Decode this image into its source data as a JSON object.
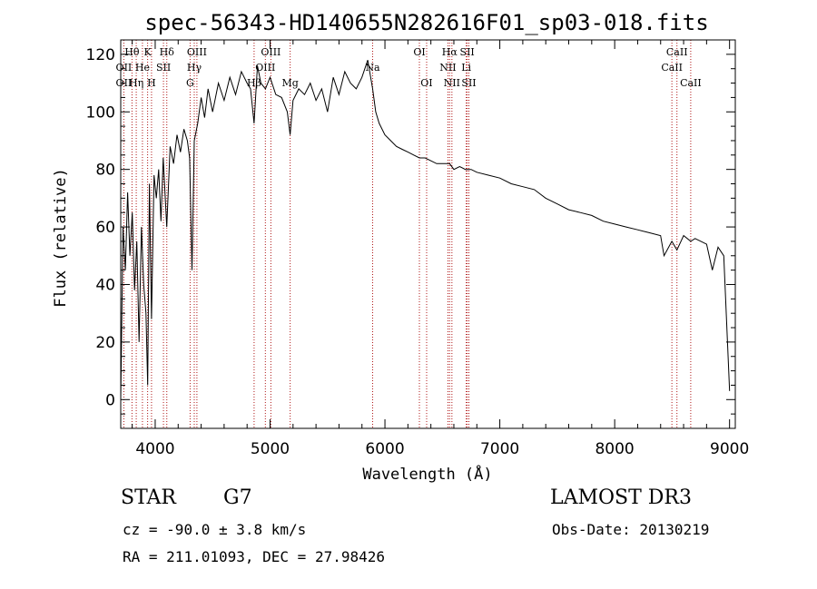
{
  "chart_data": {
    "type": "line",
    "title": "spec-56343-HD140655N282616F01_sp03-018.fits",
    "xlabel": "Wavelength (Å)",
    "ylabel": "Flux (relative)",
    "xlim": [
      3700,
      9050
    ],
    "ylim": [
      -10,
      125
    ],
    "xticks": [
      4000,
      5000,
      6000,
      7000,
      8000,
      9000
    ],
    "yticks": [
      0,
      20,
      40,
      60,
      80,
      100,
      120
    ],
    "series": [
      {
        "name": "flux",
        "x": [
          3700,
          3720,
          3740,
          3760,
          3780,
          3800,
          3820,
          3840,
          3860,
          3880,
          3900,
          3920,
          3935,
          3950,
          3968,
          3990,
          4010,
          4030,
          4050,
          4070,
          4101,
          4130,
          4160,
          4190,
          4220,
          4250,
          4280,
          4300,
          4320,
          4340,
          4370,
          4400,
          4430,
          4460,
          4500,
          4550,
          4600,
          4650,
          4700,
          4750,
          4800,
          4830,
          4861,
          4890,
          4920,
          4960,
          5000,
          5050,
          5100,
          5150,
          5175,
          5200,
          5250,
          5300,
          5350,
          5400,
          5450,
          5500,
          5550,
          5600,
          5650,
          5700,
          5750,
          5800,
          5850,
          5893,
          5920,
          5950,
          6000,
          6050,
          6100,
          6150,
          6200,
          6250,
          6300,
          6350,
          6400,
          6450,
          6500,
          6563,
          6600,
          6650,
          6700,
          6750,
          6800,
          6900,
          7000,
          7100,
          7200,
          7300,
          7400,
          7500,
          7600,
          7700,
          7800,
          7900,
          8000,
          8100,
          8200,
          8300,
          8400,
          8430,
          8498,
          8542,
          8600,
          8662,
          8700,
          8800,
          8850,
          8900,
          8950,
          9000
        ],
        "y": [
          0,
          60,
          45,
          72,
          50,
          65,
          38,
          55,
          20,
          60,
          40,
          30,
          5,
          75,
          28,
          78,
          70,
          80,
          62,
          84,
          60,
          88,
          82,
          92,
          86,
          94,
          90,
          84,
          45,
          90,
          96,
          105,
          98,
          108,
          100,
          110,
          104,
          112,
          106,
          114,
          110,
          108,
          96,
          116,
          110,
          108,
          112,
          106,
          105,
          100,
          92,
          104,
          108,
          106,
          110,
          104,
          108,
          100,
          112,
          106,
          114,
          110,
          108,
          112,
          118,
          108,
          100,
          96,
          92,
          90,
          88,
          87,
          86,
          85,
          84,
          84,
          83,
          82,
          82,
          82,
          80,
          81,
          80,
          80,
          79,
          78,
          77,
          75,
          74,
          73,
          70,
          68,
          66,
          65,
          64,
          62,
          61,
          60,
          59,
          58,
          57,
          50,
          55,
          52,
          57,
          55,
          56,
          54,
          45,
          53,
          50,
          3
        ]
      }
    ],
    "line_markers": [
      {
        "label": "Hθ",
        "x": 3798,
        "row": 0
      },
      {
        "label": "OII",
        "x": 3727,
        "row": 1
      },
      {
        "label": "OII",
        "x": 3727,
        "row": 2
      },
      {
        "label": "He",
        "x": 3889,
        "row": 1
      },
      {
        "label": "Hη",
        "x": 3835,
        "row": 2
      },
      {
        "label": "K",
        "x": 3934,
        "row": 0
      },
      {
        "label": "H",
        "x": 3968,
        "row": 2
      },
      {
        "label": "Hδ",
        "x": 4101,
        "row": 0
      },
      {
        "label": "SII",
        "x": 4072,
        "row": 1
      },
      {
        "label": "OIII",
        "x": 4363,
        "row": 0
      },
      {
        "label": "Hγ",
        "x": 4340,
        "row": 1
      },
      {
        "label": "G",
        "x": 4304,
        "row": 2
      },
      {
        "label": "OIII",
        "x": 5007,
        "row": 0
      },
      {
        "label": "OIII",
        "x": 4959,
        "row": 1
      },
      {
        "label": "Hβ",
        "x": 4861,
        "row": 2
      },
      {
        "label": "Mg",
        "x": 5175,
        "row": 2
      },
      {
        "label": "Na",
        "x": 5893,
        "row": 1
      },
      {
        "label": "OI",
        "x": 6300,
        "row": 0
      },
      {
        "label": "OI",
        "x": 6363,
        "row": 2
      },
      {
        "label": "Hα",
        "x": 6563,
        "row": 0
      },
      {
        "label": "NII",
        "x": 6548,
        "row": 1
      },
      {
        "label": "NII",
        "x": 6583,
        "row": 2
      },
      {
        "label": "SII",
        "x": 6716,
        "row": 0
      },
      {
        "label": "Li",
        "x": 6708,
        "row": 1
      },
      {
        "label": "SII",
        "x": 6731,
        "row": 2
      },
      {
        "label": "CaII",
        "x": 8542,
        "row": 0
      },
      {
        "label": "CaII",
        "x": 8498,
        "row": 1
      },
      {
        "label": "CaII",
        "x": 8662,
        "row": 2
      }
    ],
    "grid": false,
    "marker_line_color": "#b01818",
    "line_color": "#000000"
  },
  "info": {
    "object_type": "STAR",
    "spectral_class": "G7",
    "survey": "LAMOST DR3",
    "cz_label": "cz = ",
    "cz_value": "-90.0 ± 3.8 km/s",
    "obs_date_label": "Obs-Date: ",
    "obs_date": "20130219",
    "ra_label": "RA = ",
    "ra": "211.01093",
    "dec_label": ", DEC = ",
    "dec": "27.98426"
  }
}
